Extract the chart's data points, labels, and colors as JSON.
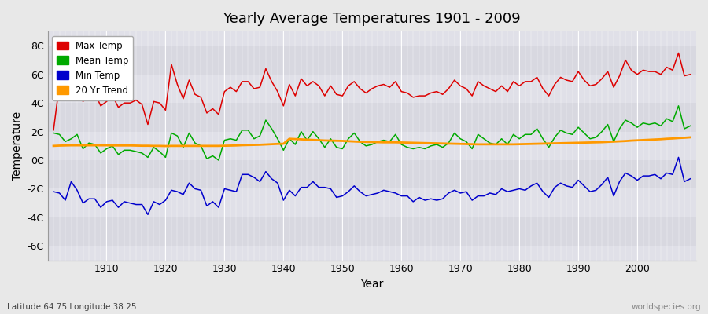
{
  "title": "Yearly Average Temperatures 1901 - 2009",
  "xlabel": "Year",
  "ylabel": "Temperature",
  "subtitle": "Latitude 64.75 Longitude 38.25",
  "watermark": "worldspecies.org",
  "years": [
    1901,
    1902,
    1903,
    1904,
    1905,
    1906,
    1907,
    1908,
    1909,
    1910,
    1911,
    1912,
    1913,
    1914,
    1915,
    1916,
    1917,
    1918,
    1919,
    1920,
    1921,
    1922,
    1923,
    1924,
    1925,
    1926,
    1927,
    1928,
    1929,
    1930,
    1931,
    1932,
    1933,
    1934,
    1935,
    1936,
    1937,
    1938,
    1939,
    1940,
    1941,
    1942,
    1943,
    1944,
    1945,
    1946,
    1947,
    1948,
    1949,
    1950,
    1951,
    1952,
    1953,
    1954,
    1955,
    1956,
    1957,
    1958,
    1959,
    1960,
    1961,
    1962,
    1963,
    1964,
    1965,
    1966,
    1967,
    1968,
    1969,
    1970,
    1971,
    1972,
    1973,
    1974,
    1975,
    1976,
    1977,
    1978,
    1979,
    1980,
    1981,
    1982,
    1983,
    1984,
    1985,
    1986,
    1987,
    1988,
    1989,
    1990,
    1991,
    1992,
    1993,
    1994,
    1995,
    1996,
    1997,
    1998,
    1999,
    2000,
    2001,
    2002,
    2003,
    2004,
    2005,
    2006,
    2007,
    2008,
    2009
  ],
  "max_temp": [
    2.1,
    5.3,
    4.8,
    4.2,
    5.2,
    4.1,
    4.6,
    4.7,
    3.8,
    4.1,
    4.5,
    3.7,
    4.0,
    4.0,
    4.2,
    3.9,
    2.5,
    4.1,
    4.0,
    3.5,
    6.7,
    5.3,
    4.3,
    5.6,
    4.6,
    4.4,
    3.3,
    3.6,
    3.2,
    4.8,
    5.1,
    4.8,
    5.5,
    5.5,
    5.0,
    5.1,
    6.4,
    5.5,
    4.8,
    3.8,
    5.3,
    4.5,
    5.7,
    5.2,
    5.5,
    5.2,
    4.5,
    5.2,
    4.6,
    4.5,
    5.2,
    5.5,
    5.0,
    4.7,
    5.0,
    5.2,
    5.3,
    5.1,
    5.5,
    4.8,
    4.7,
    4.4,
    4.5,
    4.5,
    4.7,
    4.8,
    4.6,
    5.0,
    5.6,
    5.2,
    5.0,
    4.5,
    5.5,
    5.2,
    5.0,
    4.8,
    5.2,
    4.8,
    5.5,
    5.2,
    5.5,
    5.5,
    5.8,
    5.0,
    4.5,
    5.3,
    5.8,
    5.6,
    5.5,
    6.2,
    5.6,
    5.2,
    5.3,
    5.7,
    6.2,
    5.1,
    5.9,
    7.0,
    6.3,
    6.0,
    6.3,
    6.2,
    6.2,
    6.0,
    6.5,
    6.3,
    7.5,
    5.9,
    6.0
  ],
  "mean_temp": [
    1.9,
    1.8,
    1.3,
    1.5,
    1.8,
    0.8,
    1.2,
    1.1,
    0.5,
    0.8,
    1.0,
    0.4,
    0.7,
    0.7,
    0.6,
    0.5,
    0.2,
    0.9,
    0.6,
    0.2,
    1.9,
    1.7,
    0.9,
    1.9,
    1.2,
    1.0,
    0.1,
    0.3,
    0.0,
    1.4,
    1.5,
    1.4,
    2.1,
    2.1,
    1.5,
    1.7,
    2.8,
    2.2,
    1.5,
    0.7,
    1.5,
    1.1,
    2.0,
    1.4,
    2.0,
    1.5,
    0.9,
    1.5,
    0.9,
    0.8,
    1.5,
    1.9,
    1.3,
    1.0,
    1.1,
    1.3,
    1.4,
    1.3,
    1.8,
    1.1,
    0.9,
    0.8,
    0.9,
    0.8,
    1.0,
    1.1,
    0.9,
    1.2,
    1.9,
    1.5,
    1.3,
    0.8,
    1.8,
    1.5,
    1.2,
    1.1,
    1.5,
    1.1,
    1.8,
    1.5,
    1.8,
    1.8,
    2.2,
    1.5,
    0.9,
    1.6,
    2.1,
    1.9,
    1.8,
    2.3,
    1.9,
    1.5,
    1.6,
    2.0,
    2.5,
    1.3,
    2.2,
    2.8,
    2.6,
    2.3,
    2.6,
    2.5,
    2.6,
    2.4,
    2.9,
    2.7,
    3.8,
    2.2,
    2.4
  ],
  "min_temp": [
    -2.2,
    -2.3,
    -2.8,
    -1.5,
    -2.1,
    -3.0,
    -2.7,
    -2.7,
    -3.3,
    -2.9,
    -2.8,
    -3.3,
    -2.9,
    -3.0,
    -3.1,
    -3.1,
    -3.8,
    -2.9,
    -3.1,
    -2.8,
    -2.1,
    -2.2,
    -2.4,
    -1.6,
    -2.0,
    -2.1,
    -3.2,
    -2.9,
    -3.3,
    -2.0,
    -2.1,
    -2.2,
    -1.0,
    -1.0,
    -1.2,
    -1.5,
    -0.8,
    -1.3,
    -1.6,
    -2.8,
    -2.1,
    -2.5,
    -1.9,
    -1.9,
    -1.5,
    -1.9,
    -1.9,
    -2.0,
    -2.6,
    -2.5,
    -2.2,
    -1.8,
    -2.2,
    -2.5,
    -2.4,
    -2.3,
    -2.1,
    -2.2,
    -2.3,
    -2.5,
    -2.5,
    -2.9,
    -2.6,
    -2.8,
    -2.7,
    -2.8,
    -2.7,
    -2.3,
    -2.1,
    -2.3,
    -2.2,
    -2.8,
    -2.5,
    -2.5,
    -2.3,
    -2.4,
    -2.0,
    -2.2,
    -2.1,
    -2.0,
    -2.1,
    -1.8,
    -1.6,
    -2.2,
    -2.6,
    -1.9,
    -1.6,
    -1.8,
    -1.9,
    -1.4,
    -1.8,
    -2.2,
    -2.1,
    -1.7,
    -1.2,
    -2.5,
    -1.5,
    -0.9,
    -1.1,
    -1.4,
    -1.1,
    -1.1,
    -1.0,
    -1.3,
    -0.9,
    -1.0,
    0.2,
    -1.5,
    -1.3
  ],
  "trend": [
    1.0,
    1.02,
    1.03,
    1.04,
    1.04,
    1.04,
    1.04,
    1.04,
    1.04,
    1.04,
    1.03,
    1.03,
    1.03,
    1.03,
    1.02,
    1.01,
    1.01,
    1.0,
    1.0,
    0.99,
    1.0,
    1.0,
    1.0,
    1.0,
    1.0,
    1.0,
    1.0,
    1.0,
    1.0,
    1.01,
    1.02,
    1.03,
    1.05,
    1.06,
    1.07,
    1.08,
    1.1,
    1.12,
    1.14,
    1.15,
    1.5,
    1.48,
    1.46,
    1.44,
    1.42,
    1.4,
    1.38,
    1.37,
    1.36,
    1.35,
    1.33,
    1.31,
    1.29,
    1.28,
    1.27,
    1.26,
    1.25,
    1.25,
    1.25,
    1.24,
    1.23,
    1.22,
    1.21,
    1.2,
    1.19,
    1.18,
    1.17,
    1.16,
    1.15,
    1.14,
    1.13,
    1.12,
    1.11,
    1.11,
    1.11,
    1.11,
    1.11,
    1.11,
    1.11,
    1.12,
    1.13,
    1.14,
    1.15,
    1.16,
    1.17,
    1.18,
    1.19,
    1.2,
    1.21,
    1.22,
    1.23,
    1.24,
    1.25,
    1.26,
    1.28,
    1.3,
    1.32,
    1.34,
    1.37,
    1.39,
    1.41,
    1.43,
    1.45,
    1.47,
    1.5,
    1.52,
    1.55,
    1.57,
    1.6
  ],
  "color_max": "#dd0000",
  "color_mean": "#00aa00",
  "color_min": "#0000cc",
  "color_trend": "#ff9900",
  "bg_color": "#e8e8e8",
  "plot_bg": "#e0e0e8",
  "grid_color": "#ffffff",
  "ylim": [
    -7,
    9
  ],
  "yticks": [
    -6,
    -4,
    -2,
    0,
    2,
    4,
    6,
    8
  ],
  "ytick_labels": [
    "-6C",
    "-4C",
    "-2C",
    "0C",
    "2C",
    "4C",
    "6C",
    "8C"
  ],
  "legend_labels": [
    "Max Temp",
    "Mean Temp",
    "Min Temp",
    "20 Yr Trend"
  ],
  "xmin": 1900,
  "xmax": 2010,
  "xticks": [
    1910,
    1920,
    1930,
    1940,
    1950,
    1960,
    1970,
    1980,
    1990,
    2000
  ]
}
